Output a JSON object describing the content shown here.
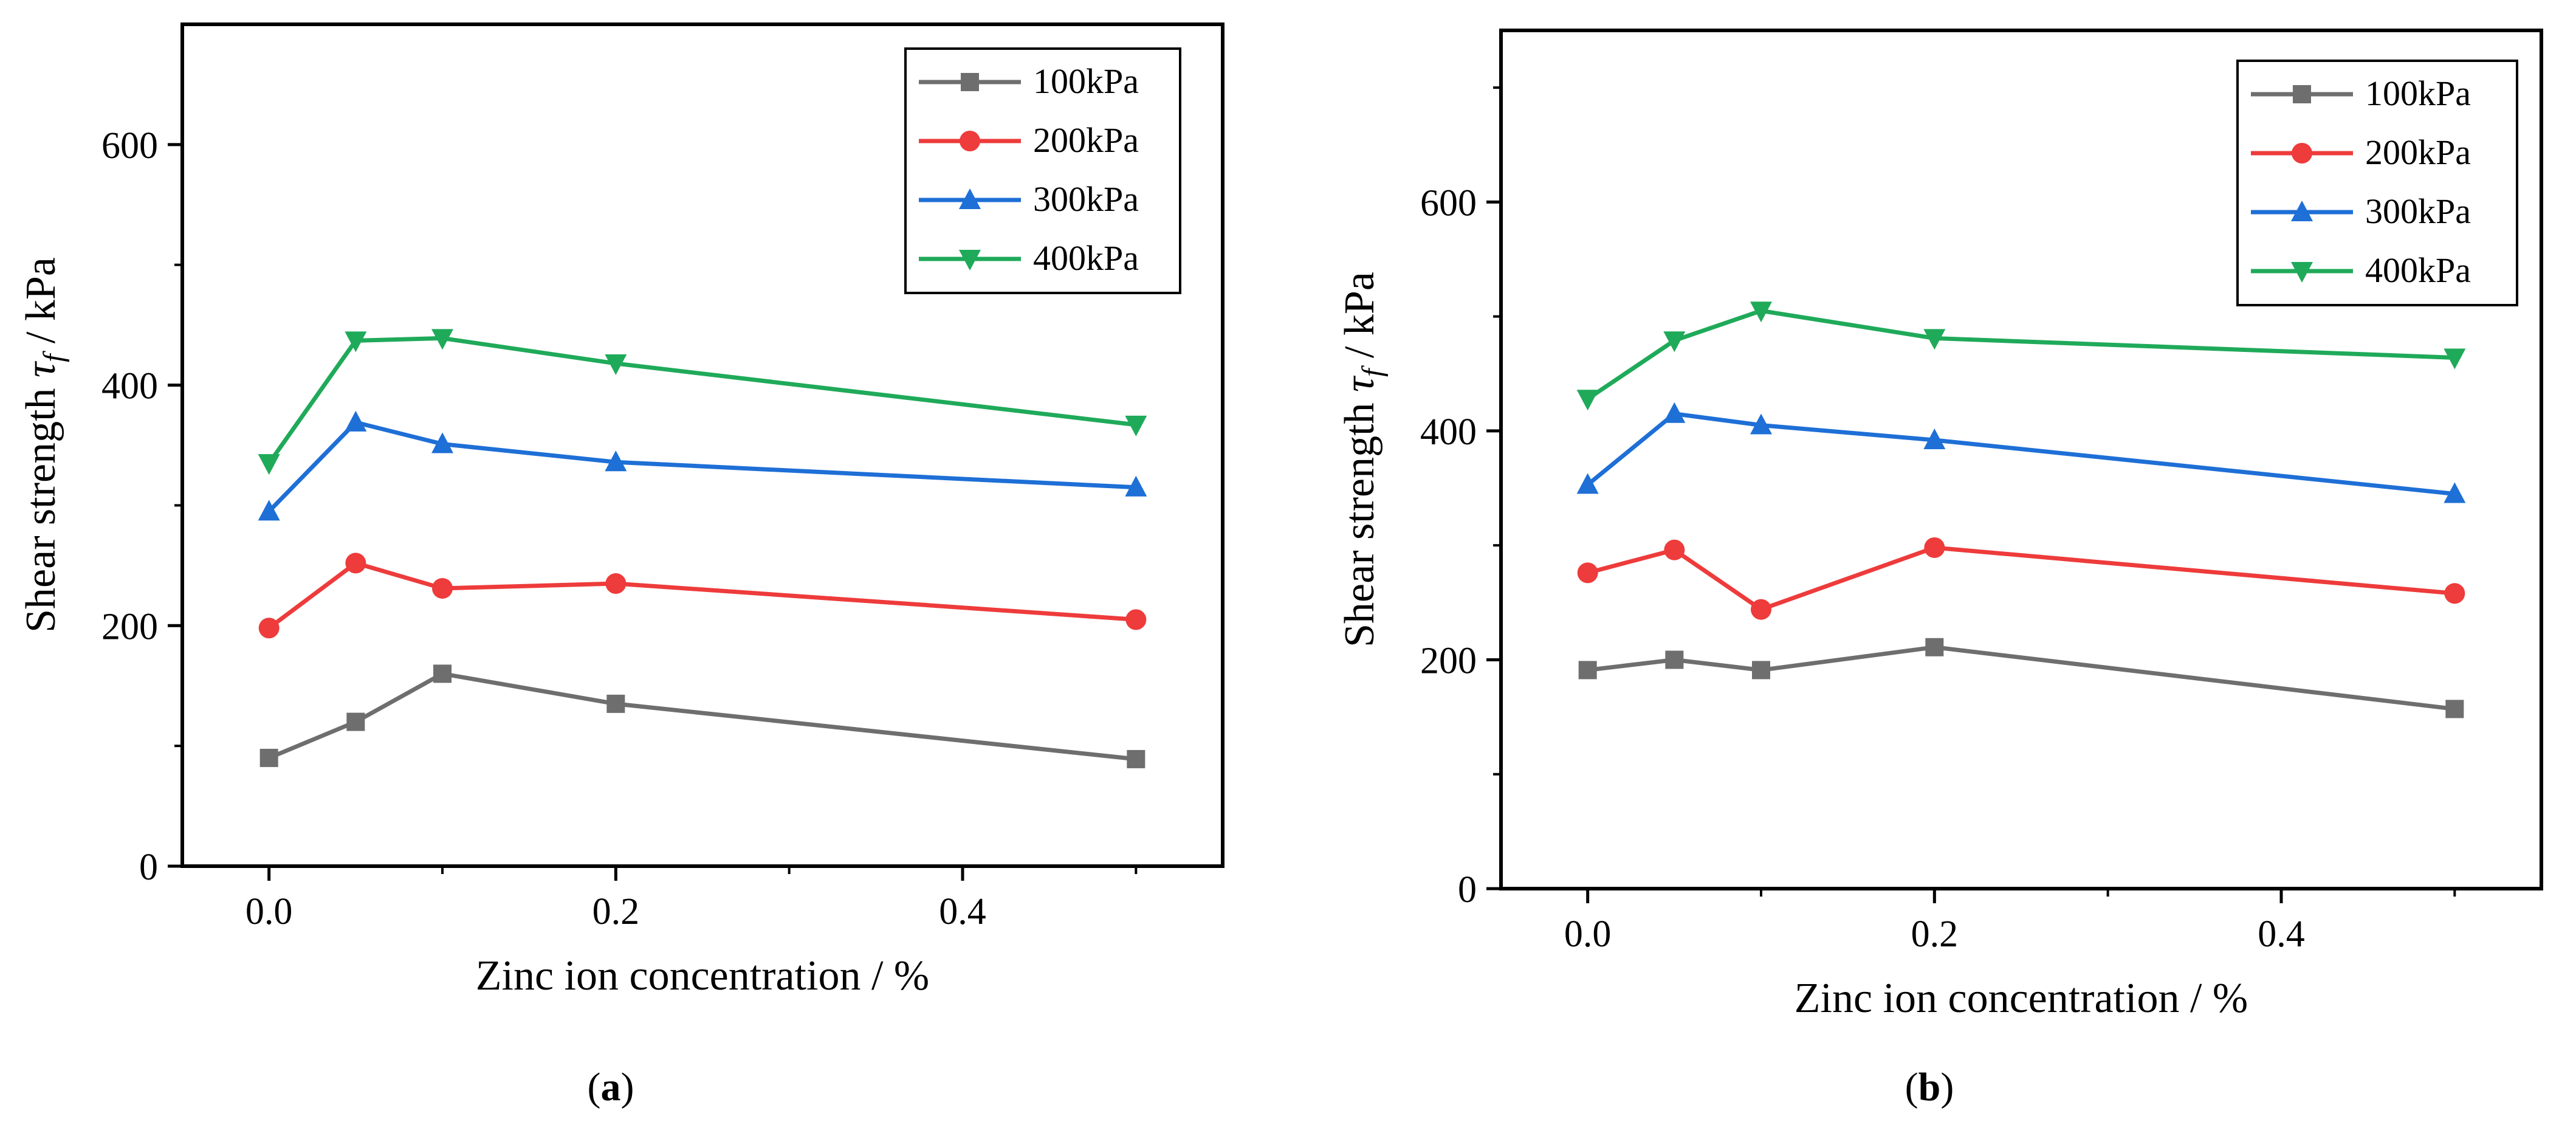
{
  "figure_title": "",
  "chart_data": [
    {
      "id": "a",
      "type": "line",
      "caption_letter": "a",
      "title": "",
      "xlabel": "Zinc ion concentration / %",
      "ylabel": {
        "prefix": "Shear strength ",
        "tau": "τ",
        "sub": "f",
        "suffix": " / kPa"
      },
      "xlim": [
        -0.05,
        0.55
      ],
      "ylim": [
        0,
        700
      ],
      "x_major_ticks": [
        0.0,
        0.2,
        0.4
      ],
      "x_tick_labels": [
        "0.0",
        "0.2",
        "0.4"
      ],
      "x_minor_ticks": [
        0.1,
        0.3,
        0.5
      ],
      "y_major_ticks": [
        0,
        200,
        400,
        600
      ],
      "y_tick_labels": [
        "0",
        "200",
        "400",
        "600"
      ],
      "y_minor_ticks": [
        100,
        300,
        500
      ],
      "legend_position": "top-right",
      "x": [
        0.0,
        0.05,
        0.1,
        0.2,
        0.5
      ],
      "series": [
        {
          "name": "100kPa",
          "color": "#6e6e6e",
          "marker": "square",
          "values": [
            90,
            120,
            160,
            135,
            89
          ]
        },
        {
          "name": "200kPa",
          "color": "#ee3b3b",
          "marker": "circle",
          "values": [
            198,
            252,
            231,
            235,
            205
          ]
        },
        {
          "name": "300kPa",
          "color": "#1e6fd6",
          "marker": "triangle-up",
          "values": [
            295,
            369,
            351,
            336,
            315
          ]
        },
        {
          "name": "400kPa",
          "color": "#1faa5a",
          "marker": "triangle-down",
          "values": [
            335,
            437,
            439,
            418,
            367
          ]
        }
      ]
    },
    {
      "id": "b",
      "type": "line",
      "caption_letter": "b",
      "title": "",
      "xlabel": "Zinc ion concentration / %",
      "ylabel": {
        "prefix": "Shear strength ",
        "tau": "τ",
        "sub": "f",
        "suffix": " / kPa"
      },
      "xlim": [
        -0.05,
        0.55
      ],
      "ylim": [
        0,
        750
      ],
      "x_major_ticks": [
        0.0,
        0.2,
        0.4
      ],
      "x_tick_labels": [
        "0.0",
        "0.2",
        "0.4"
      ],
      "x_minor_ticks": [
        0.1,
        0.3,
        0.5
      ],
      "y_major_ticks": [
        0,
        200,
        400,
        600
      ],
      "y_tick_labels": [
        "0",
        "200",
        "400",
        "600"
      ],
      "y_minor_ticks": [
        100,
        300,
        500,
        700
      ],
      "legend_position": "top-right",
      "x": [
        0.0,
        0.05,
        0.1,
        0.2,
        0.5
      ],
      "series": [
        {
          "name": "100kPa",
          "color": "#6e6e6e",
          "marker": "square",
          "values": [
            191,
            200,
            191,
            211,
            157
          ]
        },
        {
          "name": "200kPa",
          "color": "#ee3b3b",
          "marker": "circle",
          "values": [
            276,
            296,
            244,
            298,
            258
          ]
        },
        {
          "name": "300kPa",
          "color": "#1e6fd6",
          "marker": "triangle-up",
          "values": [
            353,
            415,
            405,
            392,
            345
          ]
        },
        {
          "name": "400kPa",
          "color": "#1faa5a",
          "marker": "triangle-down",
          "values": [
            428,
            479,
            505,
            481,
            464
          ]
        }
      ]
    }
  ]
}
